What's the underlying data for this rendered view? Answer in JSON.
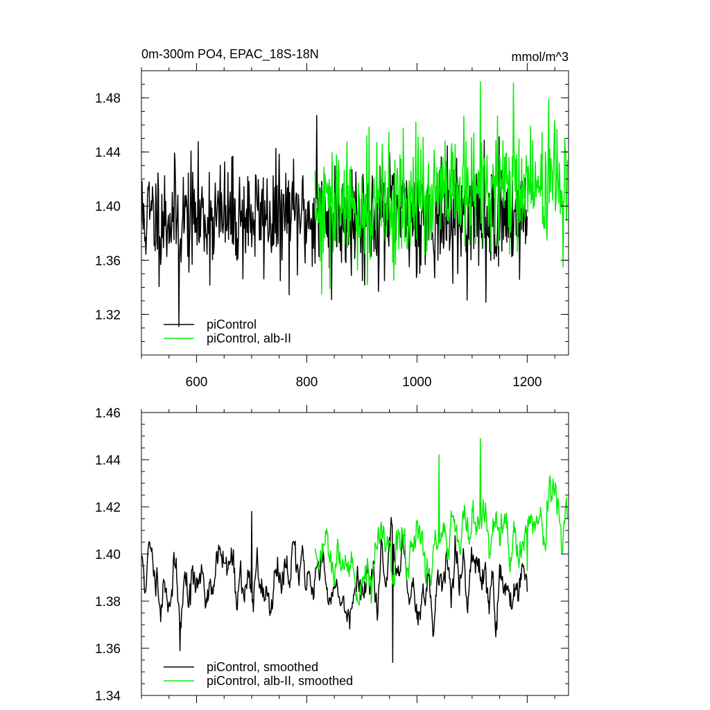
{
  "chart_data": [
    {
      "type": "line",
      "title": "0m-300m PO4, EPAC_18S-18N",
      "units": "mmol/m^3",
      "xlim": [
        500,
        1275
      ],
      "ylim": [
        1.29,
        1.5
      ],
      "xticks": [
        600,
        800,
        1000,
        1200
      ],
      "xtick_labels": [
        "600",
        "800",
        "1000",
        "1200"
      ],
      "yticks": [
        1.32,
        1.36,
        1.4,
        1.44,
        1.48
      ],
      "ytick_labels": [
        "1.32",
        "1.36",
        "1.40",
        "1.44",
        "1.48"
      ],
      "legend_position": "bottom-left",
      "series": [
        {
          "name": "piControl",
          "color": "#000000",
          "x_range": [
            500,
            1200
          ],
          "mean": 1.392,
          "amplitude": 0.024,
          "noise_seed": 11,
          "extremes": [
            [
              568,
              1.311
            ],
            [
              818,
              1.467
            ],
            [
              845,
              1.331
            ],
            [
              1125,
              1.329
            ]
          ]
        },
        {
          "name": "piControl, alb-II",
          "color": "#00ee00",
          "x_range": [
            815,
            1273
          ],
          "mean_start": 1.395,
          "mean_end": 1.418,
          "amplitude": 0.026,
          "noise_seed": 29,
          "extremes": [
            [
              1115,
              1.492
            ],
            [
              1175,
              1.491
            ],
            [
              827,
              1.335
            ],
            [
              1265,
              1.355
            ]
          ]
        }
      ]
    },
    {
      "type": "line",
      "title": "",
      "xlim": [
        500,
        1275
      ],
      "ylim": [
        1.34,
        1.46
      ],
      "xticks": [
        600,
        800,
        1000,
        1200
      ],
      "yticks": [
        1.34,
        1.36,
        1.38,
        1.4,
        1.42,
        1.44,
        1.46
      ],
      "ytick_labels": [
        "1.34",
        "1.36",
        "1.38",
        "1.40",
        "1.42",
        "1.44",
        "1.46"
      ],
      "legend_position": "bottom-left",
      "series": [
        {
          "name": "piControl, smoothed",
          "color": "#000000",
          "x_range": [
            500,
            1200
          ],
          "mean": 1.389,
          "amplitude": 0.01,
          "noise_seed": 11,
          "extremes": [
            [
              570,
              1.359
            ],
            [
              700,
              1.418
            ],
            [
              956,
              1.354
            ]
          ]
        },
        {
          "name": "piControl, alb-II, smoothed",
          "color": "#00ee00",
          "x_range": [
            815,
            1273
          ],
          "mean_start": 1.392,
          "mean_end": 1.415,
          "amplitude": 0.01,
          "noise_seed": 29,
          "extremes": [
            [
              1115,
              1.449
            ],
            [
              1040,
              1.442
            ],
            [
              1200,
              1.393
            ]
          ]
        }
      ]
    }
  ]
}
